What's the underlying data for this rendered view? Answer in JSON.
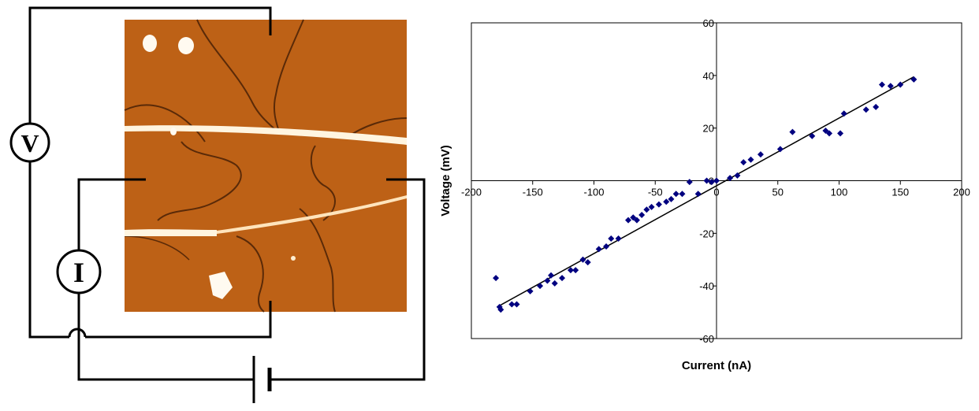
{
  "circuit": {
    "voltmeter_label": "V",
    "ammeter_label": "I",
    "colors": {
      "wire": "#000000",
      "afm_base": "#c06418",
      "afm_dark": "#5a2a08",
      "afm_bright": "#fff2d8"
    }
  },
  "chart_data": {
    "type": "scatter",
    "xlabel": "Current (nA)",
    "ylabel": "Voltage (mV)",
    "xlim": [
      -200,
      200
    ],
    "ylim": [
      -60,
      60
    ],
    "x_ticks": [
      -200,
      -150,
      -100,
      -50,
      0,
      50,
      100,
      150,
      200
    ],
    "y_ticks": [
      -60,
      -40,
      -20,
      0,
      20,
      40,
      60
    ],
    "grid": false,
    "marker_color": "#000080",
    "fit_line": {
      "x": [
        -179,
        161
      ],
      "y": [
        -48,
        39.5
      ]
    },
    "series": [
      {
        "x": [
          -180,
          -177,
          -176,
          -167,
          -163,
          -152,
          -144,
          -138,
          -135,
          -132,
          -126,
          -119,
          -115,
          -109,
          -105,
          -96,
          -90,
          -86,
          -80,
          -72,
          -68,
          -65,
          -61,
          -57,
          -53,
          -47,
          -41,
          -37,
          -33,
          -28,
          -22,
          -15,
          -8,
          -4,
          0,
          11,
          17,
          22,
          28,
          36,
          52,
          62,
          78,
          89,
          92,
          101,
          104,
          122,
          130,
          135,
          142,
          150,
          161
        ],
        "y": [
          -37,
          -48,
          -49,
          -47,
          -47,
          -42,
          -40,
          -38,
          -36,
          -39,
          -37,
          -34,
          -34,
          -30,
          -31,
          -26,
          -25,
          -22,
          -22,
          -15,
          -14,
          -15,
          -13,
          -11,
          -10,
          -9,
          -8,
          -7,
          -5,
          -5,
          -0.5,
          -5,
          0,
          -0.5,
          0,
          1,
          2,
          7,
          8,
          10,
          12,
          18.5,
          17,
          19,
          18,
          18,
          25.5,
          27,
          28,
          36.5,
          36,
          36.5,
          38.5
        ]
      }
    ]
  }
}
